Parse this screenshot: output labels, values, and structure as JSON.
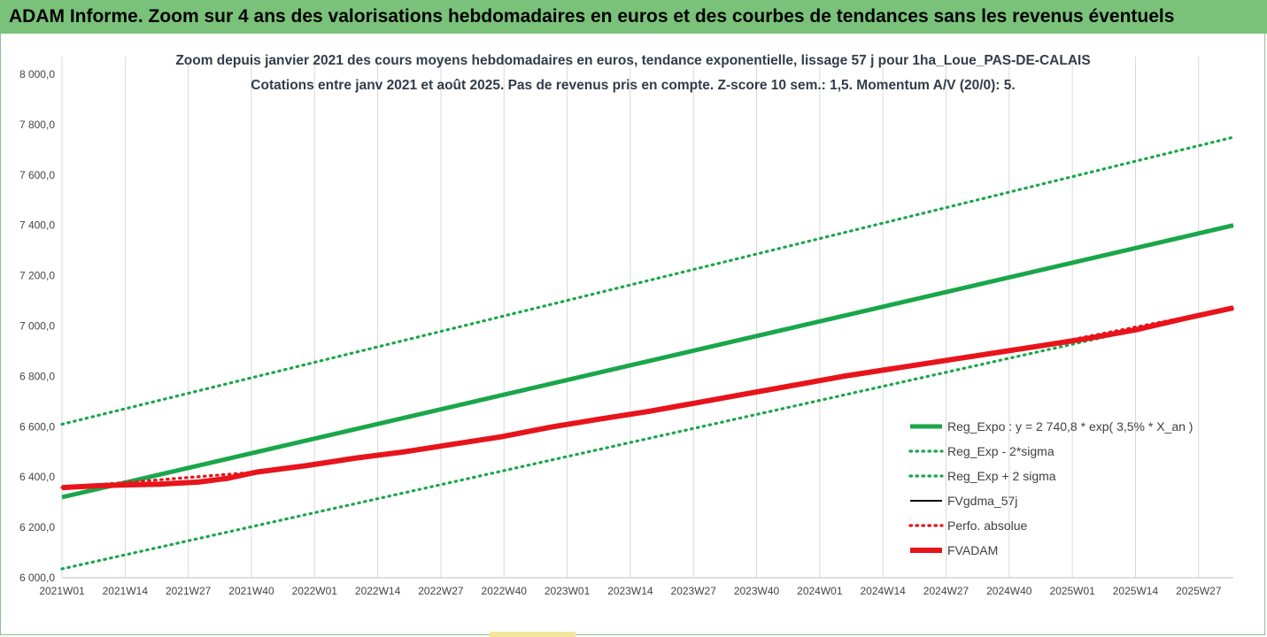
{
  "header": {
    "title": "ADAM Informe. Zoom sur 4 ans des valorisations hebdomadaires en euros et des courbes de tendances sans les revenus éventuels"
  },
  "colors": {
    "banner": "#7ac27a",
    "green": "#1aa64a",
    "black": "#000000",
    "red": "#e8141b",
    "grid": "#d9d9d9"
  },
  "chart_data": {
    "type": "line",
    "title": "Zoom depuis janvier 2021 des cours moyens hebdomadaires en euros, tendance exponentielle, lissage 57 j pour 1ha_Loue_PAS-DE-CALAIS",
    "subtitle": "Cotations entre janv 2021 et août 2025.  Pas de revenus pris en compte. Z-score 10 sem.: 1,5. Momentum A/V (20/0): 5.",
    "xlabel": "",
    "ylabel": "",
    "ylim": [
      6000,
      8000
    ],
    "ytick_labels": [
      "6 000,0",
      "6 200,0",
      "6 400,0",
      "6 600,0",
      "6 800,0",
      "7 000,0",
      "7 200,0",
      "7 400,0",
      "7 600,0",
      "7 800,0",
      "8 000,0"
    ],
    "x_tick_labels": [
      "2021W01",
      "2021W14",
      "2021W27",
      "2021W40",
      "2022W01",
      "2022W14",
      "2022W27",
      "2022W40",
      "2023W01",
      "2023W14",
      "2023W27",
      "2023W40",
      "2024W01",
      "2024W14",
      "2024W27",
      "2024W40",
      "2025W01",
      "2025W14",
      "2025W27"
    ],
    "x_range_weeks": [
      0,
      240
    ],
    "grid": "vertical",
    "legend_position": "bottom-right",
    "series": [
      {
        "name": "Reg_Expo : y = 2 740,8 * exp( 3,5% *  X_an )",
        "style": "solid-thick",
        "color": "#1aa64a",
        "points": [
          [
            0,
            6320
          ],
          [
            240,
            7400
          ]
        ]
      },
      {
        "name": "Reg_Exp - 2*sigma",
        "style": "dotted",
        "color": "#1aa64a",
        "points": [
          [
            0,
            6035
          ],
          [
            240,
            7070
          ]
        ]
      },
      {
        "name": "Reg_Exp + 2 sigma",
        "style": "dotted",
        "color": "#1aa64a",
        "points": [
          [
            0,
            6610
          ],
          [
            240,
            7750
          ]
        ]
      },
      {
        "name": "FVgdma_57j",
        "style": "solid",
        "color": "#000000",
        "points": [
          [
            0,
            6358
          ],
          [
            4,
            6362
          ],
          [
            8,
            6366
          ],
          [
            12,
            6368
          ],
          [
            16,
            6370
          ],
          [
            20,
            6372
          ],
          [
            24,
            6376
          ],
          [
            28,
            6380
          ],
          [
            34,
            6395
          ],
          [
            40,
            6420
          ],
          [
            50,
            6445
          ],
          [
            60,
            6475
          ],
          [
            70,
            6500
          ],
          [
            80,
            6530
          ],
          [
            90,
            6560
          ],
          [
            100,
            6598
          ],
          [
            110,
            6630
          ],
          [
            120,
            6660
          ],
          [
            130,
            6695
          ],
          [
            140,
            6730
          ],
          [
            150,
            6765
          ],
          [
            160,
            6800
          ],
          [
            170,
            6830
          ],
          [
            180,
            6860
          ],
          [
            190,
            6890
          ],
          [
            200,
            6920
          ],
          [
            210,
            6950
          ],
          [
            220,
            6985
          ],
          [
            230,
            7030
          ],
          [
            240,
            7070
          ]
        ]
      },
      {
        "name": "Perfo. absolue",
        "style": "dotted",
        "color": "#e8141b",
        "points": [
          [
            0,
            6358
          ],
          [
            40,
            6420
          ],
          [
            80,
            6530
          ],
          [
            120,
            6660
          ],
          [
            160,
            6800
          ],
          [
            200,
            6920
          ],
          [
            240,
            7072
          ]
        ]
      },
      {
        "name": "FVADAM",
        "style": "solid-thick",
        "color": "#e8141b",
        "points": [
          [
            0,
            6358
          ],
          [
            4,
            6362
          ],
          [
            8,
            6366
          ],
          [
            12,
            6368
          ],
          [
            16,
            6370
          ],
          [
            20,
            6372
          ],
          [
            24,
            6376
          ],
          [
            28,
            6380
          ],
          [
            34,
            6395
          ],
          [
            40,
            6420
          ],
          [
            50,
            6445
          ],
          [
            60,
            6475
          ],
          [
            70,
            6500
          ],
          [
            80,
            6530
          ],
          [
            90,
            6560
          ],
          [
            100,
            6598
          ],
          [
            110,
            6630
          ],
          [
            120,
            6660
          ],
          [
            130,
            6695
          ],
          [
            140,
            6730
          ],
          [
            150,
            6765
          ],
          [
            160,
            6800
          ],
          [
            170,
            6830
          ],
          [
            180,
            6860
          ],
          [
            190,
            6890
          ],
          [
            200,
            6920
          ],
          [
            210,
            6950
          ],
          [
            220,
            6985
          ],
          [
            230,
            7030
          ],
          [
            240,
            7072
          ]
        ]
      }
    ]
  }
}
